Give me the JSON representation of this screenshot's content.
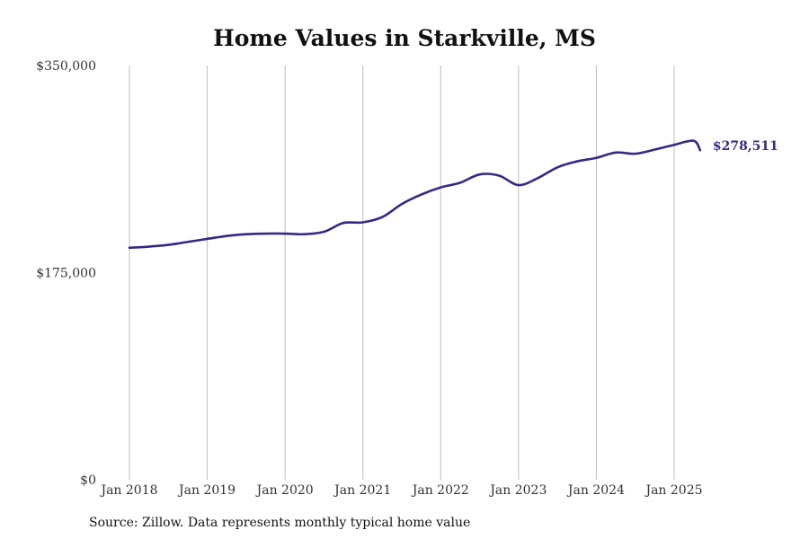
{
  "chart_data": {
    "type": "line",
    "title": "Home Values in Starkville, MS",
    "xlabel": "",
    "ylabel": "",
    "ylim": [
      0,
      350000
    ],
    "y_ticks": [
      {
        "value": 0,
        "label": "$0"
      },
      {
        "value": 175000,
        "label": "$175,000"
      },
      {
        "value": 350000,
        "label": "$350,000"
      }
    ],
    "x_ticks": [
      {
        "value": "2018-01",
        "label": "Jan 2018"
      },
      {
        "value": "2019-01",
        "label": "Jan 2019"
      },
      {
        "value": "2020-01",
        "label": "Jan 2020"
      },
      {
        "value": "2021-01",
        "label": "Jan 2021"
      },
      {
        "value": "2022-01",
        "label": "Jan 2022"
      },
      {
        "value": "2023-01",
        "label": "Jan 2023"
      },
      {
        "value": "2024-01",
        "label": "Jan 2024"
      },
      {
        "value": "2025-01",
        "label": "Jan 2025"
      }
    ],
    "x_grid": true,
    "y_grid": false,
    "line_color": "#332a86",
    "end_label": "$278,511",
    "series": [
      {
        "x": [
          "2018-01",
          "2018-04",
          "2018-07",
          "2018-10",
          "2019-01",
          "2019-04",
          "2019-07",
          "2019-10",
          "2020-01",
          "2020-04",
          "2020-07",
          "2020-10",
          "2021-01",
          "2021-04",
          "2021-07",
          "2021-10",
          "2022-01",
          "2022-04",
          "2022-07",
          "2022-10",
          "2023-01",
          "2023-04",
          "2023-07",
          "2023-10",
          "2024-01",
          "2024-04",
          "2024-07",
          "2024-10",
          "2025-01",
          "2025-04",
          "2025-05"
        ],
        "values": [
          196000,
          197000,
          198500,
          201000,
          203500,
          206000,
          207500,
          208000,
          208000,
          207500,
          209500,
          217000,
          217500,
          222000,
          233000,
          241000,
          247000,
          251000,
          258000,
          257000,
          249000,
          255000,
          264000,
          269000,
          272000,
          276500,
          275500,
          279000,
          283000,
          286500,
          278511
        ]
      }
    ]
  },
  "footer": {
    "source": "Source: Zillow. Data represents monthly typical home value"
  }
}
